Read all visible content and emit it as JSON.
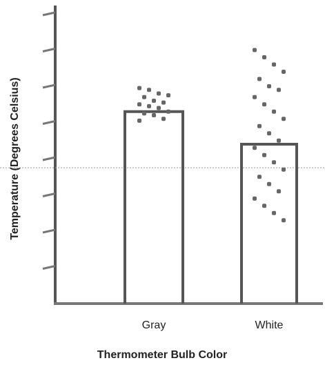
{
  "chart_data": {
    "type": "bar",
    "x_label": "Thermometer Bulb Color",
    "y_label": "Temperature (Degrees Celsius)",
    "categories": [
      "Gray",
      "White"
    ],
    "values": [
      5.3,
      4.4
    ],
    "points": [
      [
        5.95,
        5.9,
        5.8,
        5.75,
        5.7,
        5.6,
        5.55,
        5.5,
        5.45,
        5.4,
        5.3,
        5.25,
        5.2,
        5.1,
        5.05
      ],
      [
        7.0,
        6.8,
        6.6,
        6.4,
        6.2,
        6.0,
        5.9,
        5.7,
        5.5,
        5.3,
        5.1,
        4.9,
        4.7,
        4.5,
        4.3,
        4.1,
        3.9,
        3.7,
        3.5,
        3.3,
        3.1,
        2.9,
        2.7,
        2.5,
        2.3
      ]
    ],
    "reference_line": 3.75,
    "ylim": [
      0,
      8
    ],
    "yticks": [
      1,
      2,
      3,
      4,
      5,
      6,
      7,
      8
    ]
  }
}
